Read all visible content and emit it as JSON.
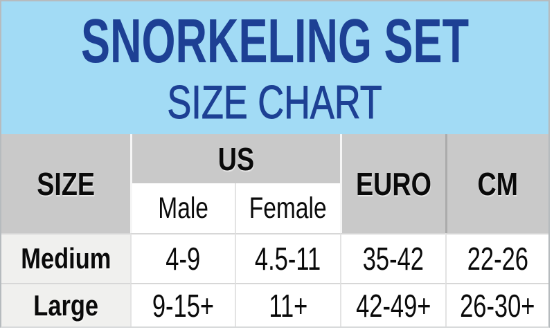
{
  "header": {
    "title": "SNORKELING SET",
    "subtitle": "SIZE CHART"
  },
  "table": {
    "header": {
      "size": "SIZE",
      "us": "US",
      "male": "Male",
      "female": "Female",
      "euro": "EURO",
      "cm": "CM"
    },
    "rows": [
      {
        "size": "Medium",
        "us_male": "4-9",
        "us_female": "4.5-11",
        "euro": "35-42",
        "cm": "22-26"
      },
      {
        "size": "Large",
        "us_male": "9-15+",
        "us_female": "11+",
        "euro": "42-49+",
        "cm": "26-30+"
      }
    ]
  },
  "colors": {
    "banner_bg": "#a2dbf5",
    "title_text": "#1d4094",
    "header_cell_bg": "#c9c9c9",
    "size_cell_bg": "#f0f0ee",
    "table_text": "#0a0a0a"
  },
  "chart_data": {
    "type": "table",
    "title": "SNORKELING SET",
    "subtitle": "SIZE CHART",
    "columns": [
      "SIZE",
      "US Male",
      "US Female",
      "EURO",
      "CM"
    ],
    "rows": [
      [
        "Medium",
        "4-9",
        "4.5-11",
        "35-42",
        "22-26"
      ],
      [
        "Large",
        "9-15+",
        "11+",
        "42-49+",
        "26-30+"
      ]
    ],
    "layout": "header column SIZE spans two header rows; US spans Male and Female subcolumns; EURO and CM span two header rows"
  }
}
